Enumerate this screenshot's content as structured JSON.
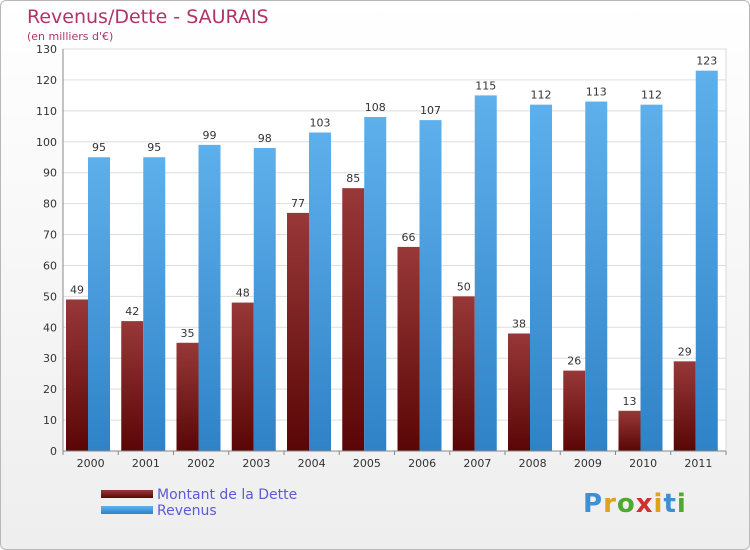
{
  "title": "Revenus/Dette - SAURAIS",
  "subtitle": "(en milliers d'€)",
  "logo": {
    "text": "Proxiti",
    "letter_colors": [
      "#3f8fd4",
      "#e0a020",
      "#50a830",
      "#d03030",
      "#e0a020",
      "#3f8fd4",
      "#50a830"
    ]
  },
  "chart_data": {
    "type": "bar",
    "categories": [
      "2000",
      "2001",
      "2002",
      "2003",
      "2004",
      "2005",
      "2006",
      "2007",
      "2008",
      "2009",
      "2010",
      "2011"
    ],
    "series": [
      {
        "name": "Montant de la Dette",
        "values": [
          49,
          42,
          35,
          48,
          77,
          85,
          66,
          50,
          38,
          26,
          13,
          29
        ],
        "color": "#7a1e1e"
      },
      {
        "name": "Revenus",
        "values": [
          95,
          95,
          99,
          98,
          103,
          108,
          107,
          115,
          112,
          113,
          112,
          123
        ],
        "color": "#4a9fe0"
      }
    ],
    "ylim": [
      0,
      130
    ],
    "yticks": [
      0,
      10,
      20,
      30,
      40,
      50,
      60,
      70,
      80,
      90,
      100,
      110,
      120,
      130
    ],
    "grid": true,
    "legend_position": "bottom-left"
  }
}
